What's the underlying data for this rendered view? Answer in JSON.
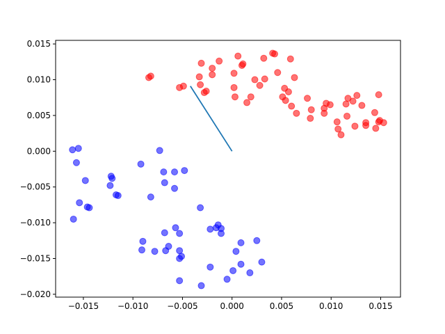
{
  "chart_data": {
    "type": "scatter",
    "title": "",
    "xlabel": "",
    "ylabel": "",
    "xlim": [
      -0.0178,
      0.017
    ],
    "ylim": [
      -0.0204,
      0.0155
    ],
    "x_ticks": [
      -0.015,
      -0.01,
      -0.005,
      0.0,
      0.005,
      0.01,
      0.015
    ],
    "x_tick_labels": [
      "−0.015",
      "−0.010",
      "−0.005",
      "0.000",
      "0.005",
      "0.010",
      "0.015"
    ],
    "y_ticks": [
      -0.02,
      -0.015,
      -0.01,
      -0.005,
      0.0,
      0.005,
      0.01,
      0.015
    ],
    "y_tick_labels": [
      "−0.020",
      "−0.015",
      "−0.010",
      "−0.005",
      "0.000",
      "0.005",
      "0.010",
      "0.015"
    ],
    "grid": false,
    "series": [
      {
        "kind": "scatter",
        "color": "#ff0000",
        "alpha": 0.55,
        "points": [
          [
            -0.0084,
            0.0103
          ],
          [
            -0.0082,
            0.0105
          ],
          [
            -0.0053,
            0.0089
          ],
          [
            -0.0049,
            0.0091
          ],
          [
            -0.0031,
            0.0123
          ],
          [
            -0.0033,
            0.0104
          ],
          [
            -0.0032,
            0.0093
          ],
          [
            -0.0028,
            0.0082
          ],
          [
            -0.0026,
            0.0084
          ],
          [
            -0.002,
            0.0116
          ],
          [
            -0.002,
            0.0107
          ],
          [
            -0.0013,
            0.0126
          ],
          [
            0.0002,
            0.0109
          ],
          [
            0.0002,
            0.0089
          ],
          [
            0.0003,
            0.0076
          ],
          [
            0.0006,
            0.0133
          ],
          [
            0.001,
            0.012
          ],
          [
            0.0011,
            0.0122
          ],
          [
            0.0015,
            0.0068
          ],
          [
            0.0019,
            0.0076
          ],
          [
            0.0023,
            0.01
          ],
          [
            0.0028,
            0.0092
          ],
          [
            0.0032,
            0.013
          ],
          [
            0.0033,
            0.0101
          ],
          [
            0.0041,
            0.0137
          ],
          [
            0.0043,
            0.0136
          ],
          [
            0.0046,
            0.011
          ],
          [
            0.0051,
            0.0076
          ],
          [
            0.0053,
            0.0088
          ],
          [
            0.0054,
            0.0071
          ],
          [
            0.0057,
            0.0083
          ],
          [
            0.0059,
            0.0129
          ],
          [
            0.006,
            0.0063
          ],
          [
            0.0063,
            0.0103
          ],
          [
            0.0065,
            0.0053
          ],
          [
            0.0076,
            0.0074
          ],
          [
            0.0079,
            0.0046
          ],
          [
            0.008,
            0.0058
          ],
          [
            0.0093,
            0.0053
          ],
          [
            0.0093,
            0.006
          ],
          [
            0.0095,
            0.0067
          ],
          [
            0.0099,
            0.0065
          ],
          [
            0.0106,
            0.0041
          ],
          [
            0.0107,
            0.0031
          ],
          [
            0.011,
            0.0023
          ],
          [
            0.0115,
            0.0066
          ],
          [
            0.0116,
            0.0049
          ],
          [
            0.0117,
            0.0074
          ],
          [
            0.0122,
            0.007
          ],
          [
            0.0124,
            0.0035
          ],
          [
            0.0126,
            0.0078
          ],
          [
            0.0131,
            0.0064
          ],
          [
            0.0135,
            0.004
          ],
          [
            0.0135,
            0.0036
          ],
          [
            0.0144,
            0.0054
          ],
          [
            0.0145,
            0.0032
          ],
          [
            0.0148,
            0.0079
          ],
          [
            0.0148,
            0.0041
          ],
          [
            0.0149,
            0.0043
          ],
          [
            0.0153,
            0.004
          ]
        ]
      },
      {
        "kind": "scatter",
        "color": "#0000ff",
        "alpha": 0.55,
        "points": [
          [
            -0.0161,
            0.0002
          ],
          [
            -0.0155,
            0.0004
          ],
          [
            -0.0157,
            -0.0016
          ],
          [
            -0.0148,
            -0.0041
          ],
          [
            -0.016,
            -0.0095
          ],
          [
            -0.0154,
            -0.0072
          ],
          [
            -0.0146,
            -0.0078
          ],
          [
            -0.0144,
            -0.0079
          ],
          [
            -0.0122,
            -0.0035
          ],
          [
            -0.0121,
            -0.0038
          ],
          [
            -0.0123,
            -0.0048
          ],
          [
            -0.0117,
            -0.0061
          ],
          [
            -0.0115,
            -0.0062
          ],
          [
            -0.0092,
            -0.0018
          ],
          [
            -0.0082,
            -0.0064
          ],
          [
            -0.0073,
            0.0001
          ],
          [
            -0.0069,
            -0.0029
          ],
          [
            -0.0068,
            -0.0044
          ],
          [
            -0.0058,
            -0.0029
          ],
          [
            -0.0048,
            -0.0027
          ],
          [
            -0.0058,
            -0.0052
          ],
          [
            -0.0032,
            -0.0079
          ],
          [
            -0.009,
            -0.0126
          ],
          [
            -0.0091,
            -0.0138
          ],
          [
            -0.0078,
            -0.014
          ],
          [
            -0.0068,
            -0.0114
          ],
          [
            -0.0067,
            -0.0139
          ],
          [
            -0.0064,
            -0.0133
          ],
          [
            -0.0057,
            -0.0107
          ],
          [
            -0.0053,
            -0.0115
          ],
          [
            -0.0053,
            -0.0139
          ],
          [
            -0.0053,
            -0.015
          ],
          [
            -0.0051,
            -0.0147
          ],
          [
            -0.0053,
            -0.0181
          ],
          [
            -0.0031,
            -0.0188
          ],
          [
            -0.0022,
            -0.0109
          ],
          [
            -0.0022,
            -0.0162
          ],
          [
            -0.0016,
            -0.0107
          ],
          [
            -0.0014,
            -0.0103
          ],
          [
            -0.0011,
            -0.0108
          ],
          [
            -0.0011,
            -0.0115
          ],
          [
            -0.0005,
            -0.0179
          ],
          [
            0.0001,
            -0.0167
          ],
          [
            0.0004,
            -0.014
          ],
          [
            0.0009,
            -0.0128
          ],
          [
            0.0009,
            -0.0158
          ],
          [
            0.0018,
            -0.017
          ],
          [
            0.0025,
            -0.0125
          ],
          [
            0.003,
            -0.0155
          ]
        ]
      },
      {
        "kind": "line",
        "color": "#1f77b4",
        "points": [
          [
            0.0,
            0.0
          ],
          [
            -0.0042,
            0.0091
          ]
        ]
      }
    ]
  }
}
